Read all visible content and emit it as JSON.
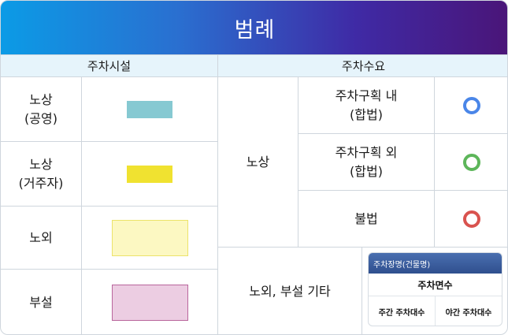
{
  "title": "범례",
  "headers": {
    "facility": "주차시설",
    "demand": "주차수요"
  },
  "facility_rows": [
    {
      "label": "노상\n(공영)",
      "swatch": {
        "fill": "#86c9d2",
        "border": "#86c9d2"
      }
    },
    {
      "label": "노상\n(거주자)",
      "swatch": {
        "fill": "#f0e230",
        "border": "#f0e230"
      }
    },
    {
      "label": "노외",
      "swatch": {
        "fill": "#fcf8c2",
        "border": "#ece36a"
      }
    },
    {
      "label": "부설",
      "swatch": {
        "fill": "#eccde2",
        "border": "#b9669c"
      }
    }
  ],
  "demand": {
    "group_label": "노상",
    "rows": [
      {
        "label": "주차구획 내\n(합법)",
        "marker_color": "#4a86e8"
      },
      {
        "label": "주차구획 외\n(합법)",
        "marker_color": "#5db65a"
      },
      {
        "label": "불법",
        "marker_color": "#d9534f"
      }
    ],
    "other_label": "노외, 부설 기타",
    "card": {
      "header": "주차장명(건물명)",
      "middle": "주차면수",
      "left": "주간 주차대수",
      "right": "야간 주차대수"
    }
  }
}
